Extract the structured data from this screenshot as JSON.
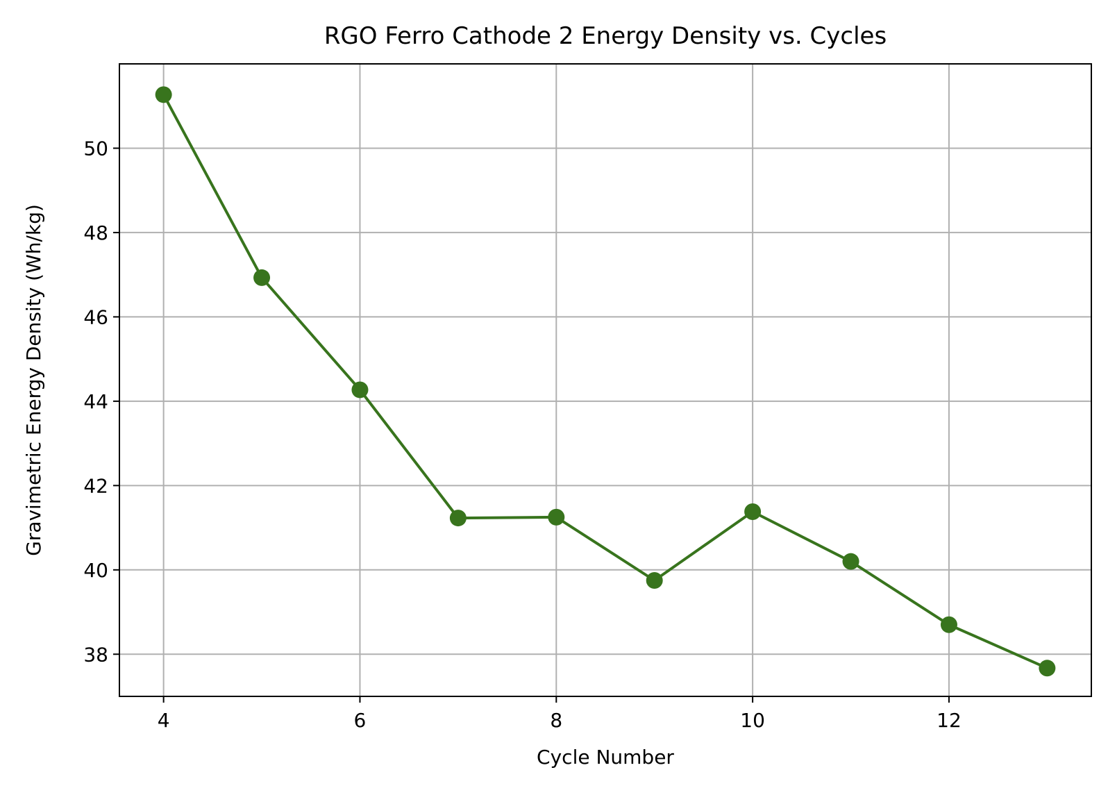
{
  "chart_data": {
    "type": "line",
    "title": "RGO Ferro Cathode 2 Energy Density vs. Cycles",
    "xlabel": "Cycle Number",
    "ylabel": "Gravimetric Energy Density (Wh/kg)",
    "x": [
      4,
      5,
      6,
      7,
      8,
      9,
      10,
      11,
      12,
      13
    ],
    "series": [
      {
        "values": [
          51.27,
          46.93,
          44.27,
          41.23,
          41.25,
          39.75,
          41.38,
          40.2,
          38.7,
          37.67
        ],
        "color": "#38741d",
        "marker": "circle"
      }
    ],
    "xlim": [
      3.55,
      13.45
    ],
    "ylim": [
      37.0,
      52.0
    ],
    "xticks": [
      4,
      6,
      8,
      10,
      12
    ],
    "yticks": [
      38,
      40,
      42,
      44,
      46,
      48,
      50
    ],
    "xtick_labels": [
      "4",
      "6",
      "8",
      "10",
      "12"
    ],
    "ytick_labels": [
      "38",
      "40",
      "42",
      "44",
      "46",
      "48",
      "50"
    ],
    "grid": true,
    "legend": "none"
  }
}
